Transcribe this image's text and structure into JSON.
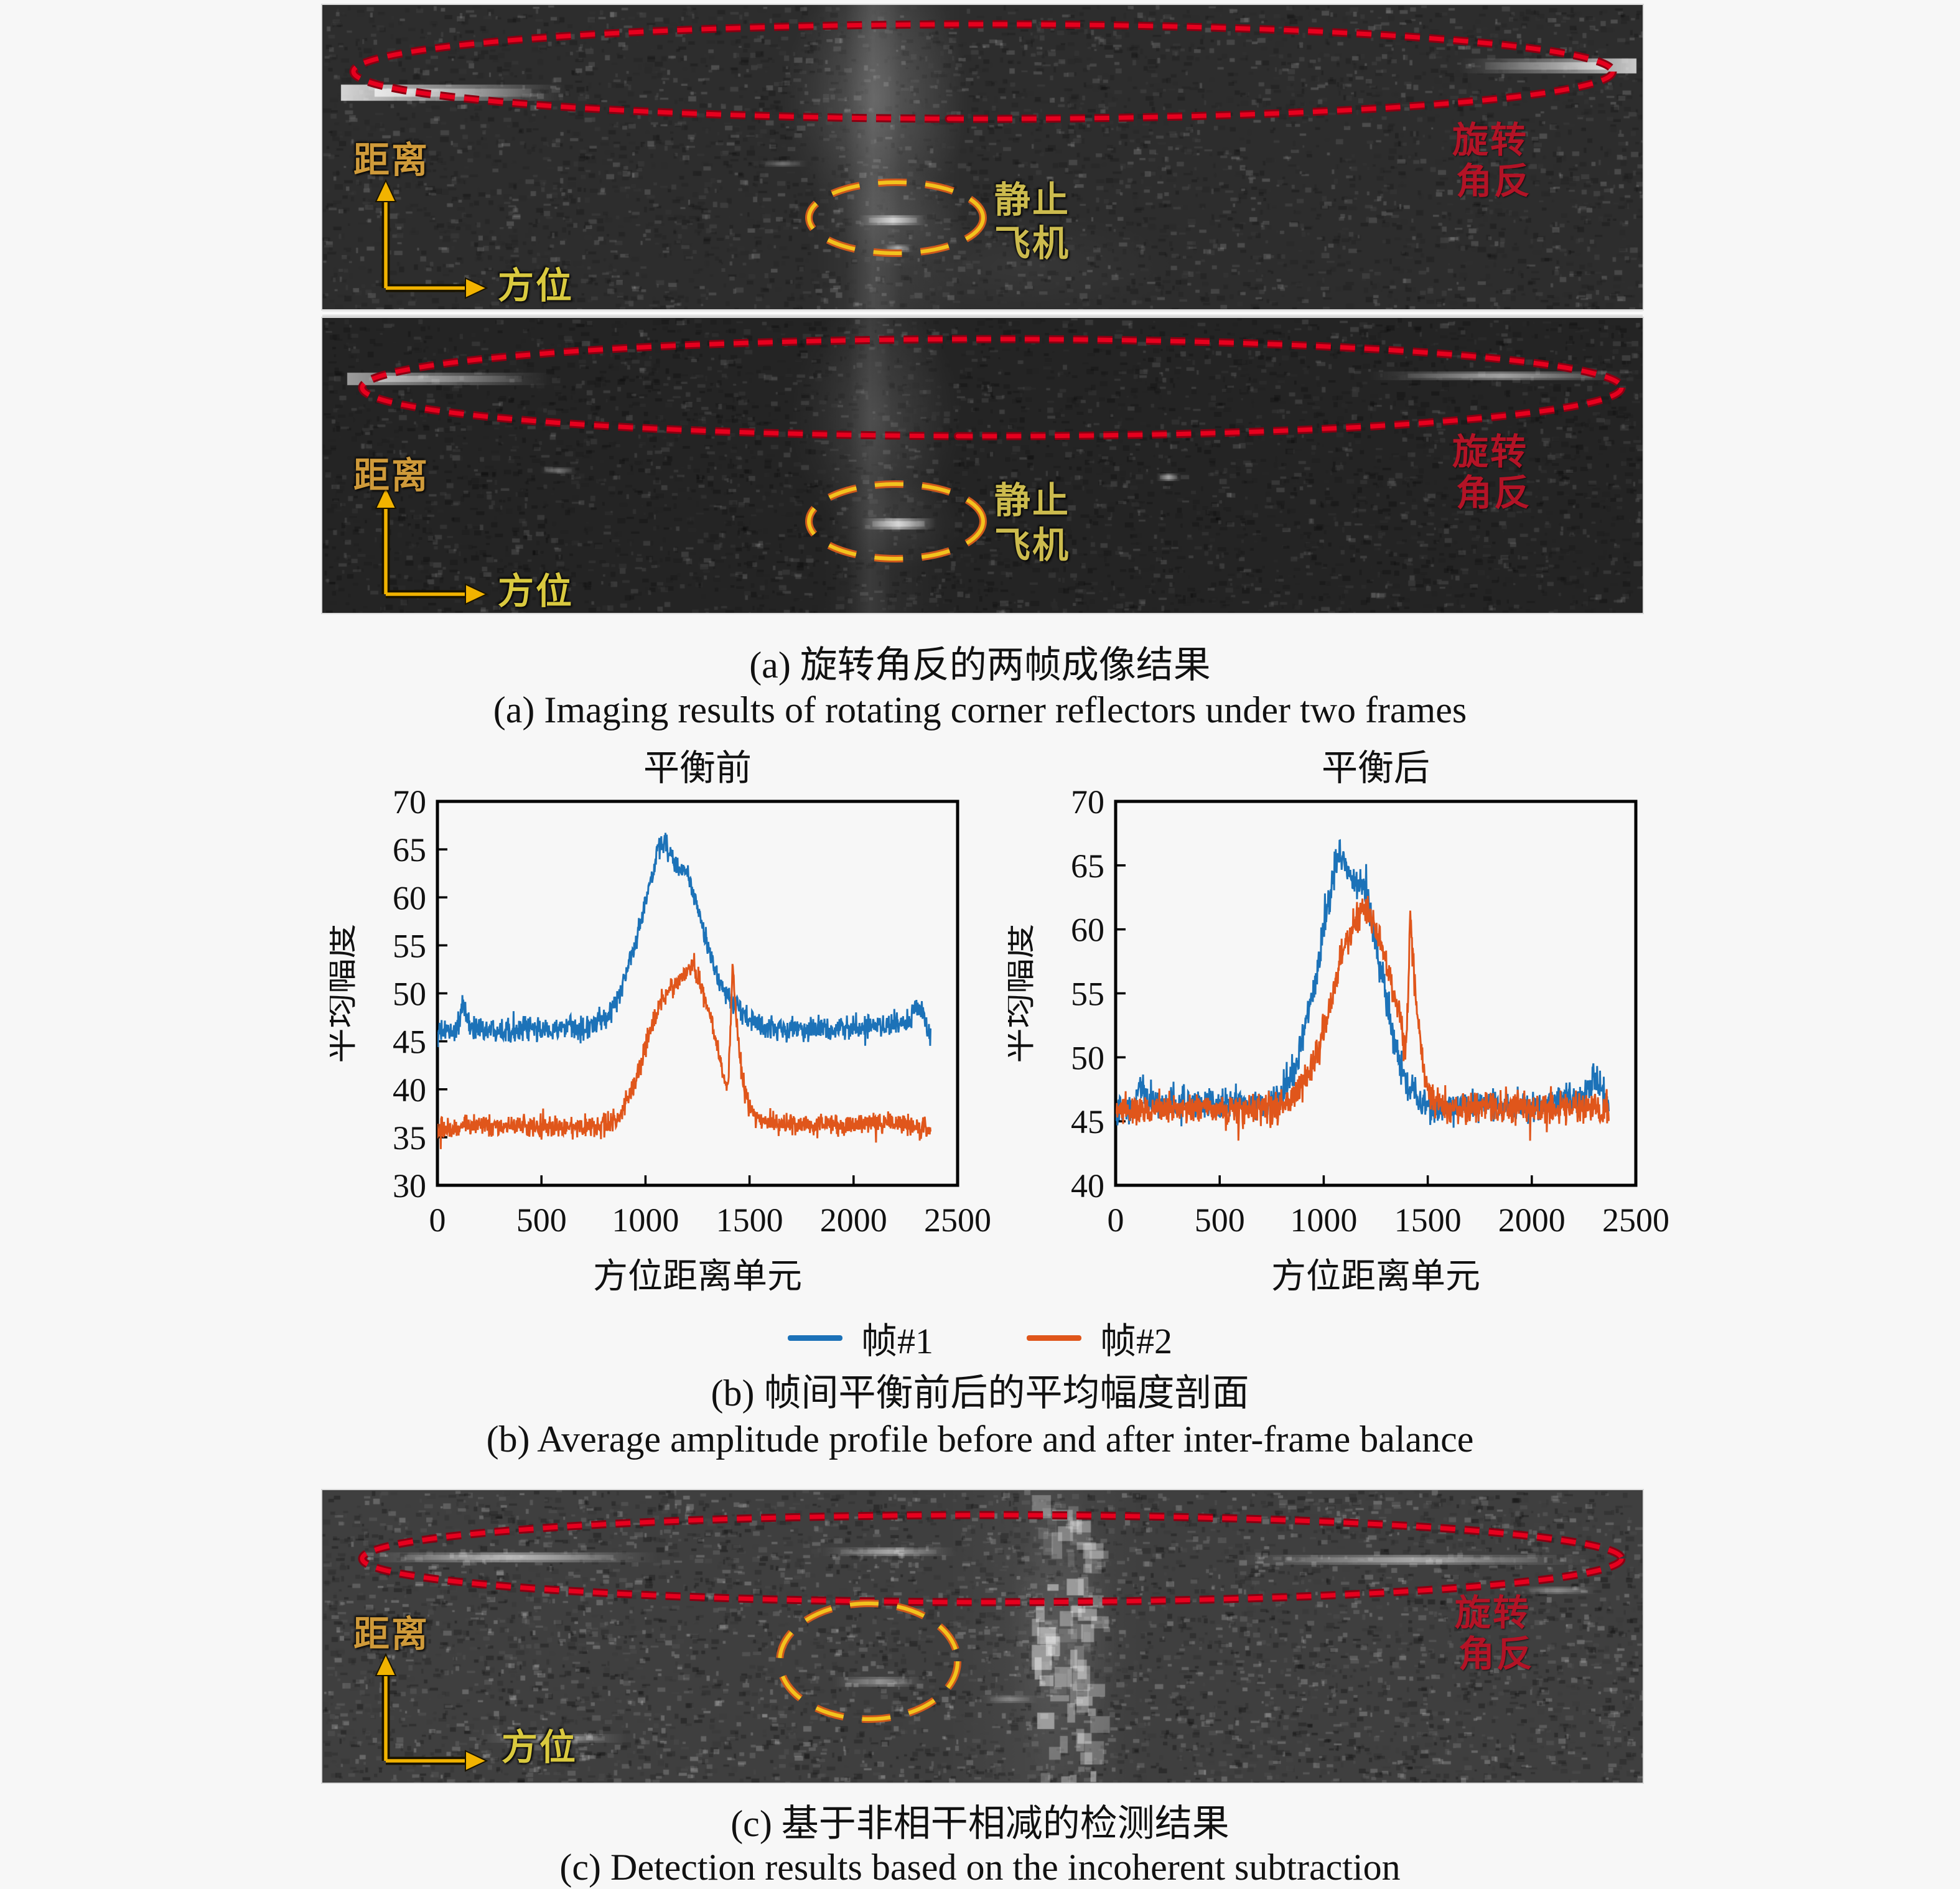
{
  "panels": {
    "a1": {
      "range": "距离",
      "azimuth": "方位",
      "stationary1": "静止",
      "stationary2": "飞机",
      "rot1": "旋转",
      "rot2": "角反"
    },
    "a2": {
      "range": "距离",
      "azimuth": "方位",
      "stationary1": "静止",
      "stationary2": "飞机",
      "rot1": "旋转",
      "rot2": "角反"
    },
    "c": {
      "range": "距离",
      "azimuth": "方位",
      "rot1": "旋转",
      "rot2": "角反"
    }
  },
  "captions": {
    "a_zh": "(a) 旋转角反的两帧成像结果",
    "a_en": "(a) Imaging results of rotating corner reflectors under two frames",
    "b_zh": "(b) 帧间平衡前后的平均幅度剖面",
    "b_en": "(b) Average amplitude profile before and after inter-frame balance",
    "c_zh": "(c) 基于非相干相减的检测结果",
    "c_en": "(c) Detection results based on the incoherent subtraction"
  },
  "legend": {
    "items": [
      {
        "label": "帧#1",
        "color": "#1c72b8"
      },
      {
        "label": "帧#2",
        "color": "#e0561b"
      }
    ]
  },
  "colors": {
    "page_bg": "#f7f7f7",
    "panel1_bg": "#2d2d2d",
    "panel2_bg": "#242424",
    "panelc_bg": "#3f3f3f",
    "red_dash": "#e6001e",
    "red_dash_under": "#8a0012",
    "yellow_dash": "#f2c31e",
    "yellow_dash_under": "#cf591c",
    "axis_arrow": "#f2b300",
    "range_label": "#cf9a3a",
    "azimuth_label": "#d9c93f",
    "stationary_label": "#ccbb4e",
    "rotating_label": "#b31326",
    "caption_text": "#111111"
  },
  "chart_data": [
    {
      "type": "line",
      "title": "平衡前",
      "xlabel": "方位距离单元",
      "ylabel": "平均幅度",
      "xlim": [
        0,
        2500
      ],
      "ylim": [
        30,
        70
      ],
      "xticks": [
        0,
        500,
        1000,
        1500,
        2000,
        2500
      ],
      "yticks": [
        70,
        65,
        60,
        55,
        50,
        45,
        40,
        35,
        30
      ],
      "x_end": 2370,
      "grid": false,
      "legend_position": "below-shared",
      "series": [
        {
          "name": "帧#1",
          "color": "#1c72b8",
          "noise": 1.2,
          "keypoints": [
            [
              0,
              45.8
            ],
            [
              90,
              46.2
            ],
            [
              125,
              48.6
            ],
            [
              155,
              46.4
            ],
            [
              400,
              46.2
            ],
            [
              700,
              46.3
            ],
            [
              800,
              47.2
            ],
            [
              860,
              49
            ],
            [
              920,
              53
            ],
            [
              960,
              56
            ],
            [
              1000,
              59.5
            ],
            [
              1030,
              62
            ],
            [
              1060,
              65
            ],
            [
              1090,
              65.8
            ],
            [
              1120,
              64.5
            ],
            [
              1160,
              63
            ],
            [
              1200,
              62.5
            ],
            [
              1240,
              59.5
            ],
            [
              1280,
              56.5
            ],
            [
              1320,
              53.5
            ],
            [
              1360,
              51
            ],
            [
              1400,
              49.5
            ],
            [
              1440,
              48.5
            ],
            [
              1500,
              47.2
            ],
            [
              1560,
              46.5
            ],
            [
              1700,
              46.3
            ],
            [
              2000,
              46.4
            ],
            [
              2260,
              46.8
            ],
            [
              2300,
              49
            ],
            [
              2335,
              47.5
            ],
            [
              2370,
              45.5
            ]
          ]
        },
        {
          "name": "帧#2",
          "color": "#e0561b",
          "noise": 1.1,
          "keypoints": [
            [
              0,
              35.6
            ],
            [
              120,
              36.4
            ],
            [
              400,
              36.2
            ],
            [
              700,
              36
            ],
            [
              820,
              36.4
            ],
            [
              880,
              37.5
            ],
            [
              930,
              39.5
            ],
            [
              980,
              43
            ],
            [
              1030,
              46.5
            ],
            [
              1070,
              49
            ],
            [
              1110,
              50.5
            ],
            [
              1150,
              51
            ],
            [
              1190,
              52
            ],
            [
              1230,
              53
            ],
            [
              1260,
              51.5
            ],
            [
              1300,
              48.5
            ],
            [
              1340,
              45
            ],
            [
              1375,
              41.5
            ],
            [
              1395,
              40.2
            ],
            [
              1408,
              46
            ],
            [
              1418,
              52.8
            ],
            [
              1432,
              49
            ],
            [
              1450,
              44
            ],
            [
              1475,
              40
            ],
            [
              1510,
              37.5
            ],
            [
              1560,
              36.6
            ],
            [
              1800,
              36.3
            ],
            [
              2100,
              36.5
            ],
            [
              2370,
              36
            ]
          ]
        }
      ]
    },
    {
      "type": "line",
      "title": "平衡后",
      "xlabel": "方位距离单元",
      "ylabel": "平均幅度",
      "xlim": [
        0,
        2500
      ],
      "ylim": [
        40,
        70
      ],
      "xticks": [
        0,
        500,
        1000,
        1500,
        2000,
        2500
      ],
      "yticks": [
        70,
        65,
        60,
        55,
        50,
        45,
        40
      ],
      "x_end": 2370,
      "grid": false,
      "legend_position": "below-shared",
      "series": [
        {
          "name": "帧#1",
          "color": "#1c72b8",
          "noise": 1.2,
          "keypoints": [
            [
              0,
              45.8
            ],
            [
              90,
              46.2
            ],
            [
              125,
              48.2
            ],
            [
              155,
              46.3
            ],
            [
              400,
              46.2
            ],
            [
              700,
              46.3
            ],
            [
              800,
              47.2
            ],
            [
              860,
              49
            ],
            [
              920,
              53
            ],
            [
              960,
              56
            ],
            [
              1000,
              60
            ],
            [
              1030,
              62.5
            ],
            [
              1060,
              65.3
            ],
            [
              1090,
              66
            ],
            [
              1120,
              64.3
            ],
            [
              1160,
              63.5
            ],
            [
              1200,
              63
            ],
            [
              1240,
              60
            ],
            [
              1280,
              56.5
            ],
            [
              1320,
              53
            ],
            [
              1360,
              50
            ],
            [
              1400,
              48
            ],
            [
              1450,
              46.8
            ],
            [
              1520,
              46
            ],
            [
              1700,
              46.2
            ],
            [
              2000,
              46.3
            ],
            [
              2260,
              46.8
            ],
            [
              2300,
              48.6
            ],
            [
              2340,
              47.2
            ],
            [
              2370,
              45.6
            ]
          ]
        },
        {
          "name": "帧#2",
          "color": "#e0561b",
          "noise": 1.2,
          "keypoints": [
            [
              0,
              45.9
            ],
            [
              300,
              46
            ],
            [
              700,
              46
            ],
            [
              820,
              46.4
            ],
            [
              880,
              47.2
            ],
            [
              930,
              48.8
            ],
            [
              980,
              51
            ],
            [
              1030,
              54
            ],
            [
              1080,
              57.5
            ],
            [
              1120,
              59.5
            ],
            [
              1160,
              61
            ],
            [
              1200,
              62
            ],
            [
              1240,
              60.5
            ],
            [
              1280,
              58.5
            ],
            [
              1320,
              56
            ],
            [
              1360,
              53.5
            ],
            [
              1390,
              50.5
            ],
            [
              1403,
              53
            ],
            [
              1415,
              61.8
            ],
            [
              1428,
              58
            ],
            [
              1450,
              53
            ],
            [
              1480,
              49
            ],
            [
              1520,
              46.8
            ],
            [
              1600,
              46.2
            ],
            [
              2000,
              46.1
            ],
            [
              2370,
              46
            ]
          ]
        }
      ]
    }
  ]
}
